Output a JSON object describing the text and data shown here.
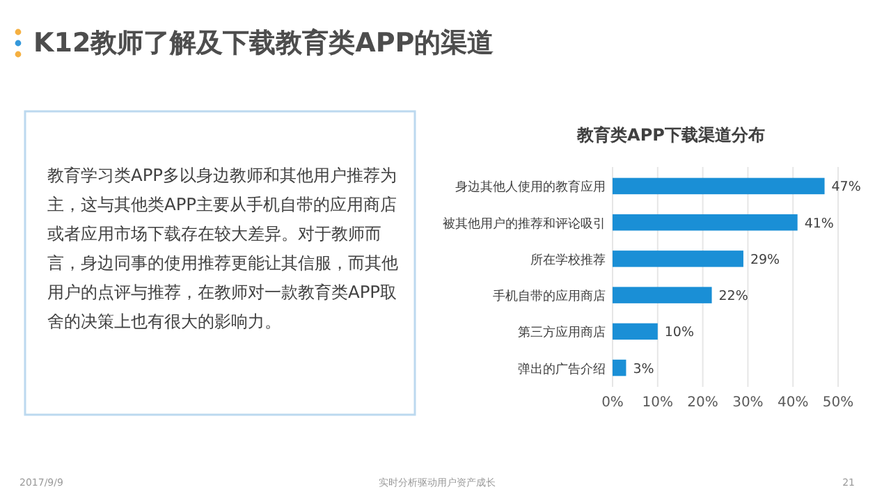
{
  "chart_data": {
    "type": "bar",
    "orientation": "horizontal",
    "title": "K12教师了解及下载教育类APP的渠道",
    "subtitle": "教育类APP下载渠道分布",
    "categories": [
      "身边其他人使用的教育应用",
      "被其他用户的推荐和评论吸引",
      "所在学校推荐",
      "手机自带的应用商店",
      "第三方应用商店",
      "弹出的广告介绍"
    ],
    "values": [
      47,
      41,
      29,
      22,
      10,
      3
    ],
    "value_labels": [
      "47%",
      "41%",
      "29%",
      "22%",
      "10%",
      "3%"
    ],
    "color": "#1a8fd6",
    "xlim": [
      0,
      50
    ],
    "xticks": [
      {
        "value": 0,
        "label": "0%"
      },
      {
        "value": 10,
        "label": "10%"
      },
      {
        "value": 20,
        "label": "20%"
      },
      {
        "value": 30,
        "label": "30%"
      },
      {
        "value": 40,
        "label": "40%"
      },
      {
        "value": 50,
        "label": "50%"
      }
    ],
    "grid": "x",
    "annotations": [
      "教育学习类APP多以身边教师和其他用户推荐为主，这与其他类APP主要从手机自带的应用商店或者应用市场下载存在较大差异。对于教师而言，身边同事的使用推荐更能让其信服，而其他用户的点评与推荐，在教师对一款教育类APP取舍的决策上也有很大的影响力。",
      "2017/9/9",
      "实时分析驱动用户资产成长",
      "21"
    ]
  }
}
